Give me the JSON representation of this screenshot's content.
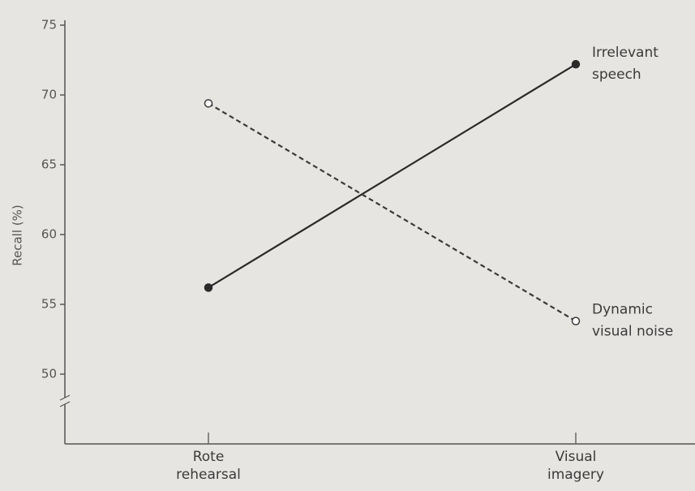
{
  "chart_data": {
    "type": "line",
    "y_label": "Recall (%)",
    "categories": [
      "Rote rehearsal",
      "Visual imagery"
    ],
    "series": [
      {
        "name": "Irrelevant speech",
        "color": "#2a2a2a",
        "marker_fill": "#2a2a2a",
        "dashed": false,
        "values": [
          56.2,
          72.2
        ]
      },
      {
        "name": "Dynamic visual noise",
        "color": "#3a3a3a",
        "marker_fill": "#ffffff",
        "dashed": true,
        "values": [
          69.4,
          53.8
        ]
      }
    ],
    "ylim": [
      45,
      75
    ],
    "yticks": [
      50,
      55,
      60,
      65,
      70,
      75
    ],
    "axis_break": true
  }
}
